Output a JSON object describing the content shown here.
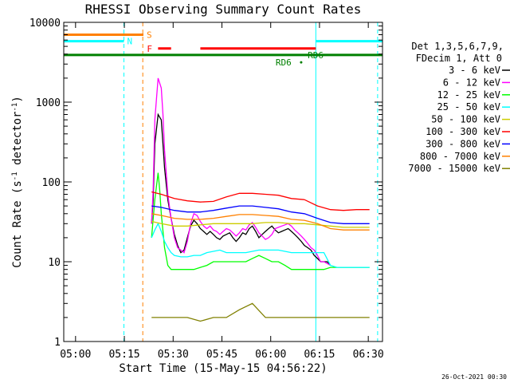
{
  "chart_data": {
    "type": "line",
    "title": "RHESSI Observing Summary Count Rates",
    "xlabel": "Start Time (15-May-15 04:56:22)",
    "ylabel_main": "Count Rate (s",
    "ylabel_sup1": "-1",
    "ylabel_mid": " detector",
    "ylabel_sup2": "-1",
    "ylabel_end": ")",
    "x_unit": "minutes after 04:56:22",
    "xlim": [
      0,
      98
    ],
    "ylim": [
      1,
      10000
    ],
    "yscale": "log",
    "x_ticks": [
      {
        "label": "05:00",
        "value": 3.63
      },
      {
        "label": "05:15",
        "value": 18.63
      },
      {
        "label": "05:30",
        "value": 33.63
      },
      {
        "label": "05:45",
        "value": 48.63
      },
      {
        "label": "06:00",
        "value": 63.63
      },
      {
        "label": "06:15",
        "value": 78.63
      },
      {
        "label": "06:30",
        "value": 93.63
      }
    ],
    "y_ticks": [
      {
        "label": "1",
        "value": 1
      },
      {
        "label": "10",
        "value": 10
      },
      {
        "label": "100",
        "value": 100
      },
      {
        "label": "1000",
        "value": 1000
      },
      {
        "label": "10000",
        "value": 10000
      }
    ],
    "legend_header": [
      "Det 1,3,5,6,7,9,",
      "FDecim 1, Att 0"
    ],
    "series": [
      {
        "name": "3 - 6 keV",
        "color": "#000000",
        "x": [
          27,
          27.5,
          28,
          29,
          30,
          30.5,
          31,
          32,
          33,
          34,
          35,
          36,
          37,
          38,
          39,
          40,
          41,
          42,
          43,
          44,
          45,
          46,
          47,
          48,
          49,
          50,
          51,
          52,
          53,
          54,
          55,
          56,
          57,
          58,
          59,
          60,
          61,
          62,
          63,
          64,
          65,
          66,
          67,
          68,
          69,
          70,
          71,
          72,
          73,
          74,
          75,
          76,
          77,
          78,
          79,
          80,
          81,
          82
        ],
        "y": [
          30,
          60,
          300,
          700,
          600,
          300,
          150,
          60,
          35,
          22,
          16,
          13,
          14,
          20,
          28,
          33,
          30,
          26,
          24,
          22,
          24,
          22,
          20,
          19,
          21,
          22,
          23,
          20,
          18,
          20,
          23,
          22,
          26,
          28,
          24,
          20,
          22,
          24,
          26,
          28,
          25,
          23,
          24,
          25,
          26,
          24,
          22,
          20,
          18,
          16,
          15,
          14,
          12,
          11,
          10,
          10,
          10,
          9
        ]
      },
      {
        "name": "6 - 12 keV",
        "color": "#ff00ff",
        "x": [
          27,
          27.5,
          28,
          29,
          30,
          30.5,
          31,
          32,
          33,
          34,
          35,
          36,
          37,
          38,
          39,
          40,
          41,
          42,
          43,
          44,
          45,
          46,
          47,
          48,
          49,
          50,
          51,
          52,
          53,
          54,
          55,
          56,
          57,
          58,
          59,
          60,
          61,
          62,
          63,
          64,
          65,
          66,
          67,
          68,
          69,
          70,
          71,
          72,
          73,
          74,
          75,
          76,
          77,
          78,
          79,
          80,
          81,
          82
        ],
        "y": [
          30,
          80,
          600,
          2000,
          1500,
          700,
          250,
          70,
          35,
          20,
          15,
          14,
          13,
          18,
          30,
          40,
          38,
          32,
          28,
          26,
          28,
          25,
          24,
          22,
          24,
          26,
          25,
          23,
          21,
          23,
          26,
          25,
          29,
          31,
          27,
          23,
          21,
          19,
          20,
          22,
          26,
          27,
          28,
          29,
          30,
          28,
          25,
          23,
          21,
          19,
          17,
          15,
          14,
          12,
          10,
          10,
          9.5,
          9
        ]
      },
      {
        "name": "12 - 25 keV",
        "color": "#00ff00",
        "x": [
          27,
          28,
          29,
          29.5,
          30,
          31,
          32,
          33,
          34,
          36,
          38,
          40,
          42,
          44,
          46,
          48,
          50,
          52,
          54,
          56,
          58,
          60,
          62,
          64,
          66,
          68,
          70,
          72,
          74,
          76,
          78,
          80,
          82,
          84,
          86,
          88,
          90,
          92,
          94
        ],
        "y": [
          20,
          60,
          130,
          80,
          40,
          15,
          9,
          8,
          8,
          8,
          8,
          8,
          8.5,
          9,
          10,
          10,
          10,
          10,
          10,
          10,
          11,
          12,
          11,
          10,
          10,
          9,
          8,
          8,
          8,
          8,
          8,
          8,
          8.5,
          8.5,
          8.5,
          8.5,
          8.5,
          8.5,
          8.5
        ]
      },
      {
        "name": "25 - 50 keV",
        "color": "#00ffff",
        "x": [
          27,
          28,
          29,
          30,
          31,
          32,
          33,
          34,
          36,
          38,
          40,
          42,
          44,
          46,
          48,
          50,
          52,
          54,
          56,
          58,
          60,
          62,
          64,
          66,
          68,
          70,
          72,
          74,
          76,
          78,
          80,
          82,
          84,
          86,
          88,
          90,
          92,
          94
        ],
        "y": [
          20,
          25,
          30,
          24,
          18,
          15,
          13,
          12,
          11.5,
          11.5,
          12,
          12,
          13,
          13.5,
          14,
          13,
          13,
          13,
          13,
          13.5,
          14,
          14,
          14,
          14,
          13.5,
          13,
          13,
          13,
          13,
          13,
          13,
          9,
          8.5,
          8.5,
          8.5,
          8.5,
          8.5,
          8.5
        ]
      },
      {
        "name": "50 - 100 keV",
        "color": "#cccc00",
        "x": [
          27,
          30,
          34,
          38,
          42,
          46,
          50,
          54,
          58,
          62,
          66,
          70,
          74,
          78,
          82,
          86,
          90,
          94
        ],
        "y": [
          32,
          30,
          28,
          28,
          29,
          30,
          30,
          30,
          30,
          31,
          31,
          30,
          30,
          29,
          28,
          27,
          27,
          27
        ]
      },
      {
        "name": "100 - 300 keV",
        "color": "#ff0000",
        "x": [
          27,
          30,
          34,
          38,
          42,
          46,
          50,
          54,
          58,
          62,
          66,
          70,
          74,
          78,
          82,
          86,
          90,
          94
        ],
        "y": [
          75,
          70,
          62,
          58,
          56,
          57,
          65,
          72,
          72,
          70,
          68,
          62,
          60,
          50,
          45,
          44,
          45,
          45
        ]
      },
      {
        "name": "300 - 800 keV",
        "color": "#0000ff",
        "x": [
          27,
          30,
          34,
          38,
          42,
          46,
          50,
          54,
          58,
          62,
          66,
          70,
          74,
          78,
          82,
          86,
          90,
          94
        ],
        "y": [
          50,
          48,
          44,
          42,
          42,
          44,
          47,
          50,
          50,
          48,
          46,
          42,
          40,
          35,
          31,
          30,
          30,
          30
        ]
      },
      {
        "name": "800 - 7000 keV",
        "color": "#ff8000",
        "x": [
          27,
          30,
          34,
          38,
          42,
          46,
          50,
          54,
          58,
          62,
          66,
          70,
          74,
          78,
          82,
          86,
          90,
          94
        ],
        "y": [
          40,
          38,
          35,
          34,
          34,
          35,
          37,
          39,
          39,
          38,
          37,
          34,
          33,
          30,
          26,
          25,
          25,
          25
        ]
      },
      {
        "name": "7000 - 15000 keV",
        "color": "#808000",
        "x": [
          27,
          30,
          34,
          38,
          42,
          46,
          50,
          54,
          58,
          62,
          66,
          70,
          74,
          78,
          82,
          86,
          90,
          94
        ],
        "y": [
          2,
          2,
          2,
          2,
          1.8,
          2,
          2,
          2.5,
          3,
          2,
          2,
          2,
          2,
          2,
          2,
          2,
          2,
          2
        ]
      }
    ],
    "status_bars": [
      {
        "label": "S",
        "color": "#ff8000",
        "y": 7000,
        "segments": [
          [
            0,
            24.5
          ]
        ]
      },
      {
        "label": "N",
        "color": "#00ffff",
        "y": 5800,
        "segments": [
          [
            0,
            18.5
          ],
          [
            77.5,
            98
          ]
        ]
      },
      {
        "label": "F",
        "color": "#ff0000",
        "y": 4700,
        "segments": [
          [
            29,
            33
          ],
          [
            42,
            77.5
          ]
        ]
      },
      {
        "label": "",
        "color": "#008000",
        "y": 3900,
        "segments": [
          [
            0,
            98
          ]
        ]
      }
    ],
    "markers": [
      {
        "label": "RD6",
        "color": "#008000",
        "x": 72.5,
        "y": 3150
      },
      {
        "label": "RD6",
        "color": "#008000",
        "x": 75,
        "y": 3900
      }
    ],
    "vlines": [
      {
        "x": 18.5,
        "color": "#00ffff",
        "style": "dashed"
      },
      {
        "x": 24.3,
        "color": "#ff8000",
        "style": "dashed"
      },
      {
        "x": 77.5,
        "color": "#00ffff",
        "style": "solid"
      },
      {
        "x": 96.5,
        "color": "#00ffff",
        "style": "dashed"
      }
    ],
    "footer": "26-Oct-2021 00:30"
  }
}
